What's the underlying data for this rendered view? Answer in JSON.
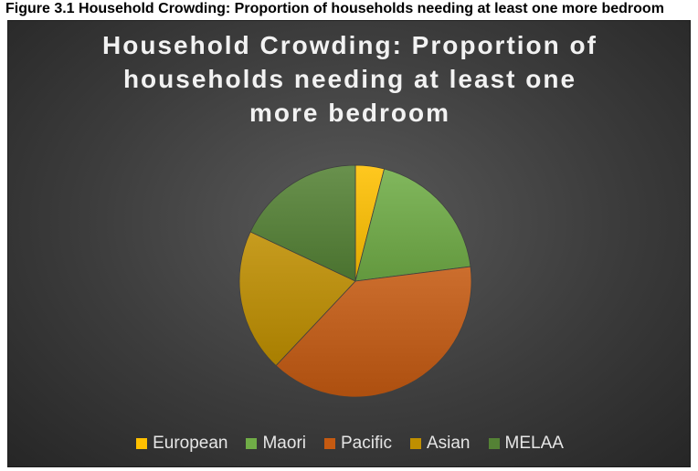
{
  "caption": "Figure 3.1 Household Crowding: Proportion of households needing at least one more bedroom",
  "chart_data": {
    "type": "pie",
    "title_lines": [
      "Household Crowding: Proportion of",
      "households needing at least one",
      "more bedroom"
    ],
    "categories": [
      "European",
      "Maori",
      "Pacific",
      "Asian",
      "MELAA"
    ],
    "values": [
      4,
      19,
      39,
      20,
      18
    ],
    "colors": [
      "#FFC000",
      "#70AD47",
      "#C55A11",
      "#BF8F00",
      "#548235"
    ],
    "legend_position": "bottom",
    "start_angle": "12 o'clock",
    "direction": "clockwise"
  }
}
